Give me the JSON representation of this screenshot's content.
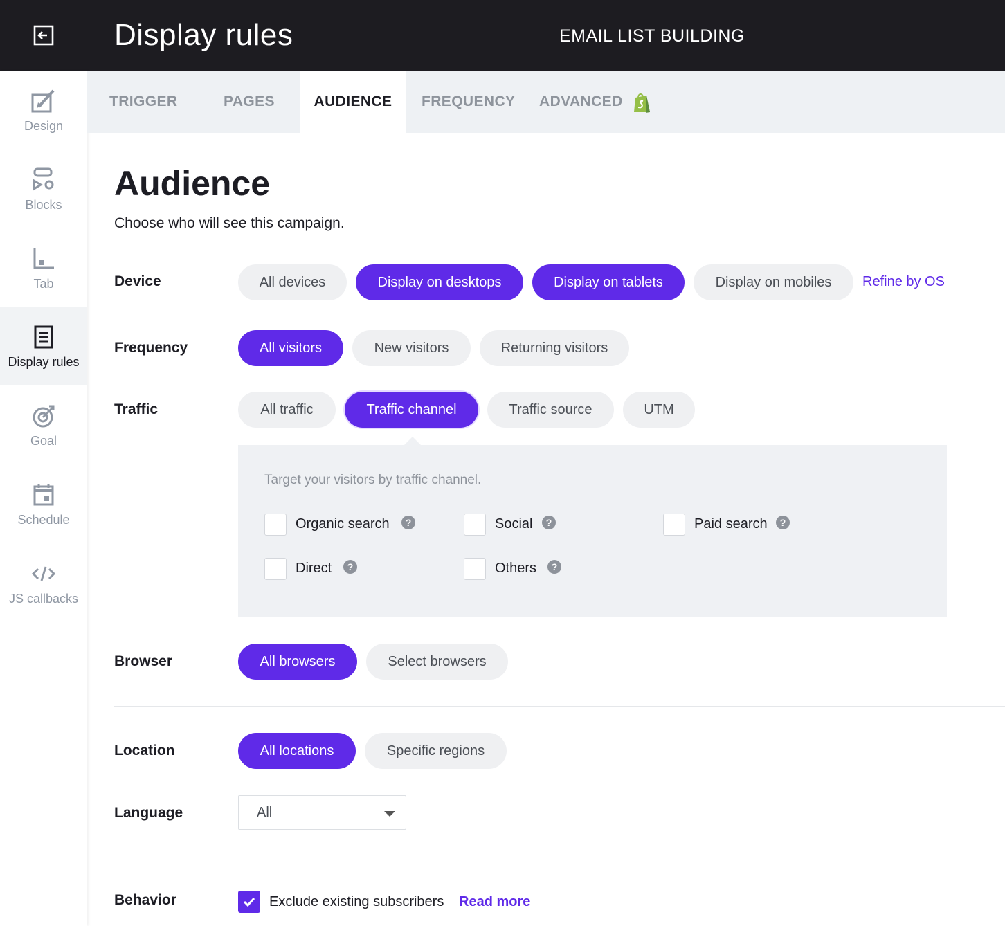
{
  "header": {
    "title": "Display rules",
    "campaign": "EMAIL LIST BUILDING"
  },
  "sidebar": {
    "items": [
      {
        "label": "Design"
      },
      {
        "label": "Blocks"
      },
      {
        "label": "Tab"
      },
      {
        "label": "Display rules"
      },
      {
        "label": "Goal"
      },
      {
        "label": "Schedule"
      },
      {
        "label": "JS callbacks"
      }
    ]
  },
  "tabs": [
    "TRIGGER",
    "PAGES",
    "AUDIENCE",
    "FREQUENCY",
    "ADVANCED"
  ],
  "main": {
    "title": "Audience",
    "subtitle": "Choose who will see this campaign."
  },
  "device": {
    "label": "Device",
    "options": [
      "All devices",
      "Display on desktops",
      "Display on tablets",
      "Display on mobiles"
    ],
    "refine_link": "Refine by OS"
  },
  "frequency": {
    "label": "Frequency",
    "options": [
      "All visitors",
      "New visitors",
      "Returning visitors"
    ]
  },
  "traffic": {
    "label": "Traffic",
    "options": [
      "All traffic",
      "Traffic channel",
      "Traffic source",
      "UTM"
    ],
    "panel_hint": "Target your visitors by traffic channel.",
    "channels": [
      "Organic search",
      "Social",
      "Paid search",
      "Direct",
      "Others"
    ]
  },
  "browser": {
    "label": "Browser",
    "options": [
      "All browsers",
      "Select browsers"
    ]
  },
  "location": {
    "label": "Location",
    "options": [
      "All locations",
      "Specific regions"
    ]
  },
  "language": {
    "label": "Language",
    "value": "All"
  },
  "behavior": {
    "label": "Behavior",
    "checkbox_label": "Exclude existing subscribers",
    "link": "Read more"
  },
  "colors": {
    "accent": "#5f2ae8",
    "topbar": "#1d1c21",
    "pill_bg": "#eff0f2",
    "shopify_green": "#95bf47"
  }
}
